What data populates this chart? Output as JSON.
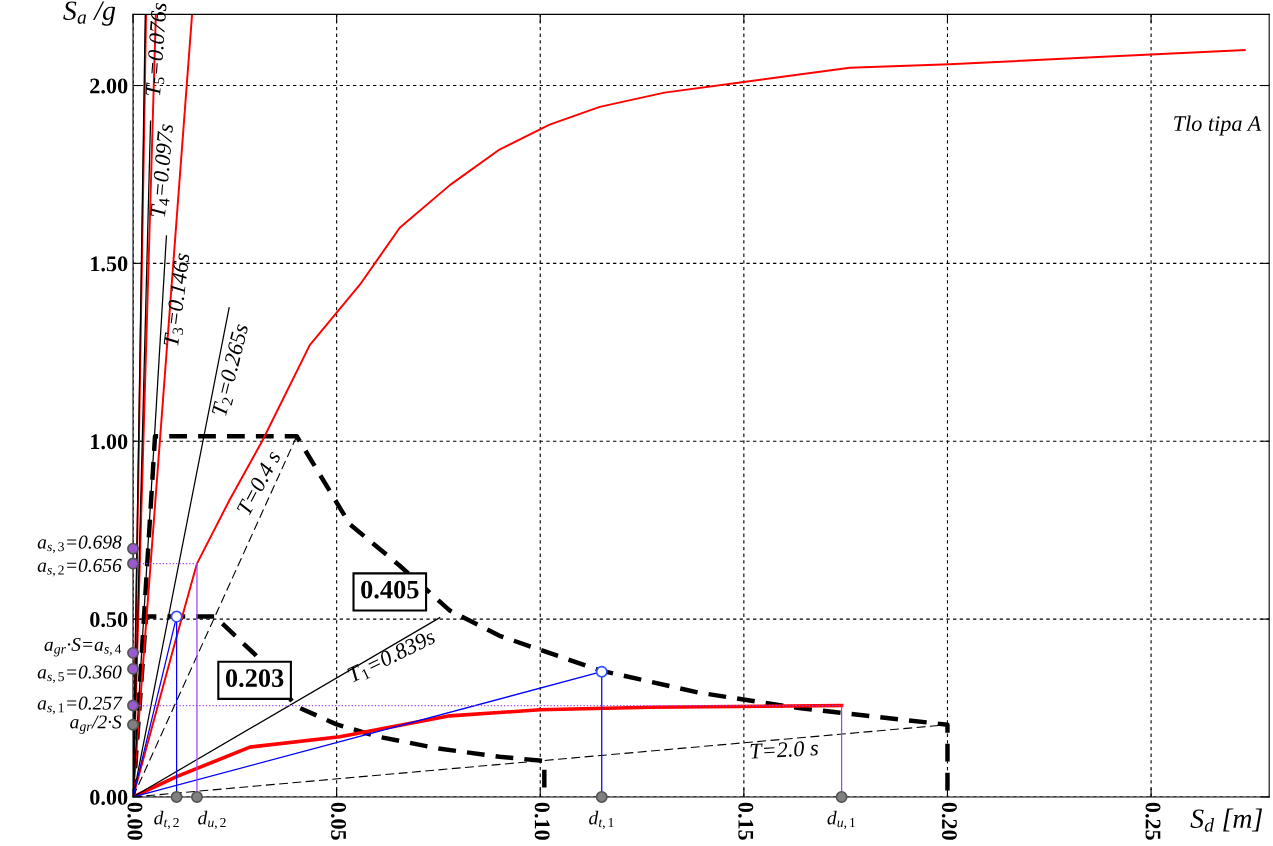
{
  "chart_data": {
    "type": "line",
    "xlabel": "S$_{d}$ [m]",
    "ylabel": "S$_{a}$ /g",
    "xlim": [
      0,
      0.279
    ],
    "ylim": [
      0,
      2.2
    ],
    "xticks": [
      {
        "value": 0,
        "label": "0.00"
      },
      {
        "value": 0.05,
        "label": "0.05"
      },
      {
        "value": 0.1,
        "label": "0.10"
      },
      {
        "value": 0.15,
        "label": "0.15"
      },
      {
        "value": 0.2,
        "label": "0.20"
      },
      {
        "value": 0.25,
        "label": "0.25"
      }
    ],
    "yticks": [
      {
        "value": 0,
        "label": "0.00"
      },
      {
        "value": 0.5,
        "label": "0.50"
      },
      {
        "value": 1.0,
        "label": "1.00"
      },
      {
        "value": 1.5,
        "label": "1.50"
      },
      {
        "value": 2.0,
        "label": "2.00"
      }
    ],
    "grid": true,
    "series": [
      {
        "color": "#000000",
        "line_style": "dashed",
        "x": [
          0,
          0.0054,
          0.0402,
          0.0532,
          0.0655,
          0.0778,
          0.09,
          0.1146,
          0.139,
          0.164,
          0.2,
          0.2
        ],
        "values": [
          0,
          1.014,
          1.014,
          0.767,
          0.65,
          0.524,
          0.453,
          0.356,
          0.293,
          0.249,
          0.203,
          0
        ]
      },
      {
        "color": "#000000",
        "line_style": "dashed",
        "x": [
          0,
          0.0032,
          0.0201,
          0.03,
          0.04,
          0.05,
          0.06,
          0.075,
          0.09,
          0.101,
          0.101
        ],
        "values": [
          0,
          0.507,
          0.507,
          0.4,
          0.255,
          0.204,
          0.17,
          0.136,
          0.113,
          0.101,
          0
        ]
      },
      {
        "color": "#ff0000",
        "line_style": "solid",
        "x": [
          0,
          0.0107,
          0.0157,
          0.0238,
          0.0317,
          0.0434,
          0.0557,
          0.0655,
          0.0778,
          0.09,
          0.1023,
          0.1146,
          0.1305,
          0.15,
          0.176,
          0.2005,
          0.237,
          0.273
        ],
        "values": [
          0,
          0.45,
          0.656,
          0.837,
          1.0,
          1.27,
          1.44,
          1.6,
          1.72,
          1.82,
          1.89,
          1.94,
          1.98,
          2.01,
          2.05,
          2.06,
          2.08,
          2.1
        ]
      },
      {
        "color": "#ff0000",
        "line_style": "solid",
        "x": [
          0,
          0.0107,
          0.0287,
          0.0508,
          0.0778,
          0.1,
          0.127,
          0.174
        ],
        "values": [
          0,
          0.057,
          0.14,
          0.169,
          0.228,
          0.245,
          0.252,
          0.257
        ]
      },
      {
        "color": "#ff0000",
        "line_style": "solid",
        "x": [
          0,
          0.0032
        ],
        "values": [
          0,
          2.2
        ]
      },
      {
        "color": "#ff0000",
        "line_style": "solid",
        "x": [
          0,
          0.0056
        ],
        "values": [
          0,
          2.2
        ]
      },
      {
        "color": "#ff0000",
        "line_style": "solid",
        "x": [
          0,
          0.0145
        ],
        "values": [
          0,
          2.2
        ]
      },
      {
        "color": "#000000",
        "line_style": "solid",
        "x": [
          0,
          0.003
        ],
        "values": [
          0,
          2.2
        ]
      },
      {
        "color": "#000000",
        "line_style": "solid",
        "x": [
          0,
          0.0043
        ],
        "values": [
          0,
          1.9
        ]
      },
      {
        "color": "#000000",
        "line_style": "solid",
        "x": [
          0,
          0.0082
        ],
        "values": [
          0,
          1.577
        ]
      },
      {
        "color": "#000000",
        "line_style": "solid",
        "x": [
          0,
          0.0236
        ],
        "values": [
          0,
          1.375
        ]
      },
      {
        "color": "#000000",
        "line_style": "solid",
        "x": [
          0,
          0.0753
        ],
        "values": [
          0,
          0.504
        ]
      },
      {
        "color": "#000000",
        "line_style": "dashed",
        "x": [
          0,
          0.0402
        ],
        "values": [
          0,
          1.014
        ]
      },
      {
        "color": "#000000",
        "line_style": "dashed",
        "x": [
          0,
          0.2
        ],
        "values": [
          0,
          0.203
        ]
      },
      {
        "color": "#0000ff",
        "line_style": "solid",
        "x": [
          0,
          0.0107,
          0.0107
        ],
        "values": [
          0,
          0.507,
          0
        ]
      },
      {
        "color": "#0000ff",
        "line_style": "solid",
        "x": [
          0,
          0.1151,
          0.1151
        ],
        "values": [
          0,
          0.352,
          0
        ]
      },
      {
        "color": "#a040ff",
        "line_style": "dotted",
        "x": [
          0,
          0.0157
        ],
        "values": [
          0.656,
          0.656
        ]
      },
      {
        "color": "#a040ff",
        "line_style": "solid",
        "x": [
          0.0157,
          0.0157
        ],
        "values": [
          0,
          0.656
        ]
      },
      {
        "color": "#a040ff",
        "line_style": "dotted",
        "x": [
          0,
          0.174
        ],
        "values": [
          0.257,
          0.257
        ]
      },
      {
        "color": "#a040ff",
        "line_style": "solid",
        "x": [
          0.174,
          0.174
        ],
        "values": [
          0,
          0.257
        ]
      },
      {
        "type": "scatter",
        "color": "#ffffff",
        "marker": "circle",
        "x": [
          0.0107,
          0.1151
        ],
        "values": [
          0.507,
          0.352
        ]
      },
      {
        "type": "scatter",
        "color": "#9b59d0",
        "marker": "circle",
        "x": [
          0,
          0,
          0,
          0,
          0
        ],
        "values": [
          0.698,
          0.656,
          0.405,
          0.36,
          0.257
        ]
      },
      {
        "type": "scatter",
        "color": "#808080",
        "marker": "circle",
        "x": [
          0,
          0.0107,
          0.0157,
          0.1151,
          0.174
        ],
        "values": [
          0.203,
          0,
          0,
          0,
          0
        ]
      }
    ],
    "annotations": [
      "T$_{5}$=0.076s",
      "T$_{4}$=0.097s",
      "T$_{3}$=0.146s",
      "T$_{2}$=0.265s",
      "T=0.4 s",
      "T$_{1}$=0.839s",
      "T=2.0 s",
      "0.405",
      "0.203",
      "Tlo tipa A",
      {
        "text": "a$_{s,3}$=0.698",
        "x": 0,
        "y": 0.698
      },
      {
        "text": "a$_{s,2}$=0.656",
        "x": 0,
        "y": 0.656
      },
      {
        "text": "a$_{gr}$·S=a$_{s,4}$",
        "x": 0,
        "y": 0.405
      },
      {
        "text": "a$_{s,5}$=0.360",
        "x": 0,
        "y": 0.36
      },
      {
        "text": "a$_{s,1}$=0.257",
        "x": 0,
        "y": 0.257
      },
      {
        "text": "a$_{gr}$/2·S",
        "x": 0,
        "y": 0.203
      },
      {
        "text": "d$_{t,2}$",
        "x": 0.0107,
        "y": 0
      },
      {
        "text": "d$_{u,2}$",
        "x": 0.0157,
        "y": 0
      },
      {
        "text": "d$_{t,1}$",
        "x": 0.1151,
        "y": 0
      },
      {
        "text": "d$_{u,1}$",
        "x": 0.174,
        "y": 0
      }
    ]
  }
}
